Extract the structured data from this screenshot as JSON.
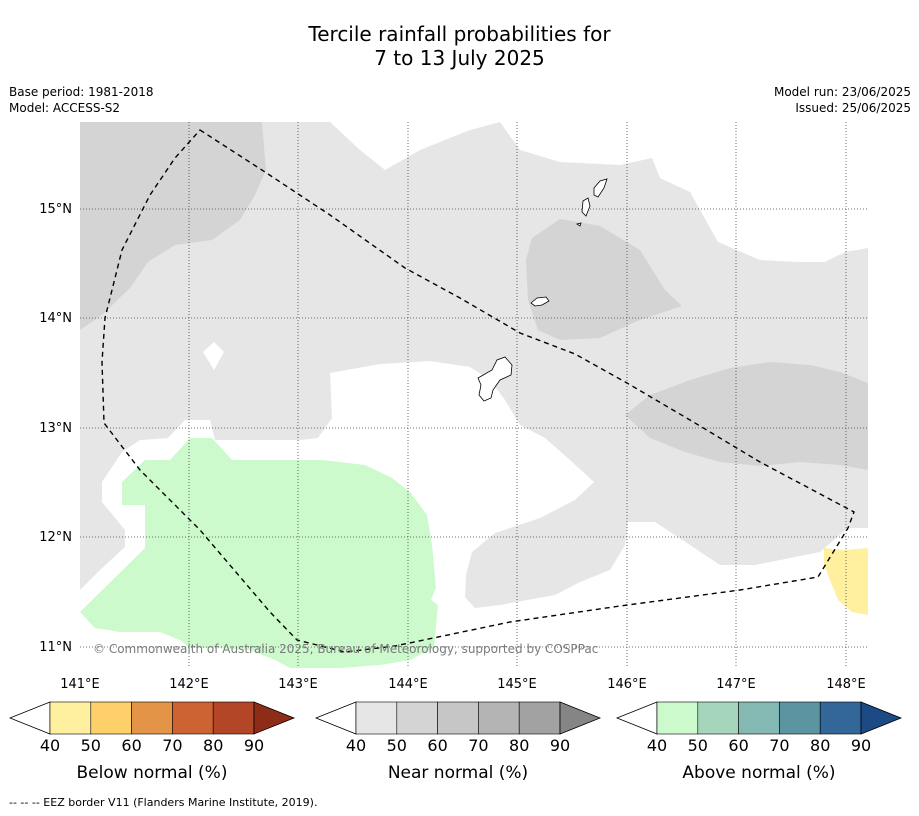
{
  "title_line1": "Tercile rainfall probabilities for",
  "title_line2": "7 to 13 July 2025",
  "meta": {
    "base_period": "Base period: 1981-2018",
    "model": "Model: ACCESS-S2",
    "model_run": "Model run: 23/06/2025",
    "issued": "Issued: 25/06/2025"
  },
  "map": {
    "lon_labels": [
      "141°E",
      "142°E",
      "143°E",
      "144°E",
      "145°E",
      "146°E",
      "147°E",
      "148°E"
    ],
    "lat_labels": [
      "15°N",
      "14°N",
      "13°N",
      "12°N",
      "11°N"
    ],
    "copyright": "© Commonwealth of Australia 2025, Bureau of Meteorology, supported by COSPPac"
  },
  "legends": [
    {
      "label": "Below normal (%)",
      "ticks": [
        "40",
        "50",
        "60",
        "70",
        "80",
        "90"
      ],
      "colors": [
        "#fff0a0",
        "#fdd06a",
        "#e39447",
        "#cd6333",
        "#b24627",
        "#8d2d18"
      ]
    },
    {
      "label": "Near normal (%)",
      "ticks": [
        "40",
        "50",
        "60",
        "70",
        "80",
        "90"
      ],
      "colors": [
        "#e6e6e6",
        "#d4d4d4",
        "#c6c6c6",
        "#b4b4b4",
        "#a2a2a2",
        "#858585"
      ]
    },
    {
      "label": "Above normal (%)",
      "ticks": [
        "40",
        "50",
        "60",
        "70",
        "80",
        "90"
      ],
      "colors": [
        "#ccfacc",
        "#a5d6bb",
        "#84b8b2",
        "#5c94a1",
        "#336699",
        "#1b4a84"
      ]
    }
  ],
  "footer": "--  --  -- EEZ border V11 (Flanders Marine Institute, 2019)."
}
